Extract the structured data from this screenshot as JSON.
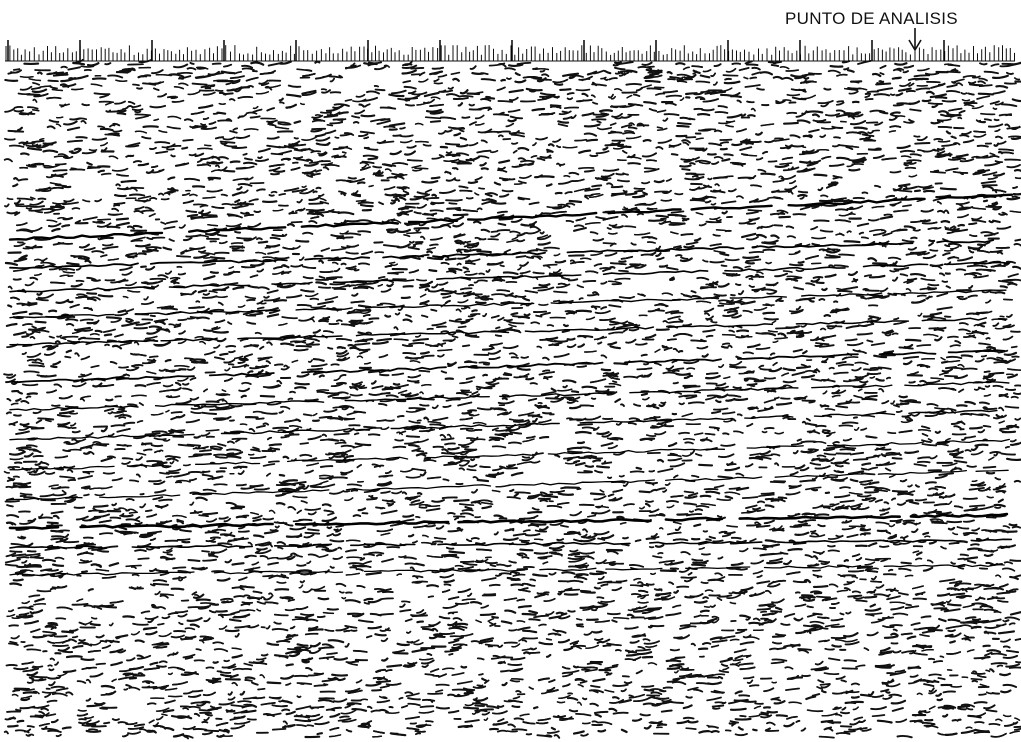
{
  "annotation": {
    "label": "PUNTO DE ANALISIS"
  }
}
